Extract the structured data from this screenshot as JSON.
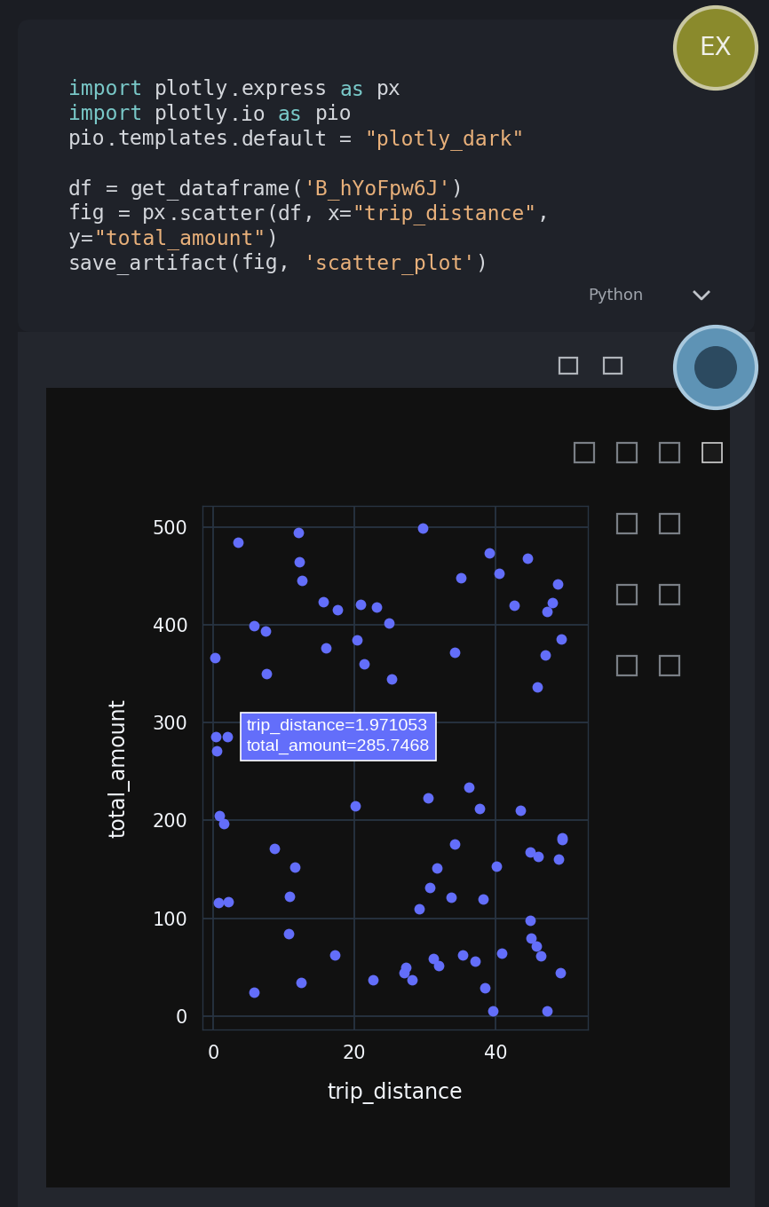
{
  "header": {
    "avatar": "EX"
  },
  "code": {
    "language": "Python",
    "blocks": [
      [
        "import plotly.express as px",
        "import plotly.io as pio",
        "pio.templates.default = \"plotly_dark\""
      ],
      [
        "df = get_dataframe('B_hYoFpw6J')",
        "fig = px.scatter(df, x=\"trip_distance\",",
        "y=\"total_amount\")",
        "save_artifact(fig, 'scatter_plot')"
      ]
    ]
  },
  "chart_data": {
    "type": "scatter",
    "xlabel": "trip_distance",
    "ylabel": "total_amount",
    "color": "#636efa",
    "grid": true,
    "xlim": [
      -1.5,
      53
    ],
    "ylim": [
      -14,
      522
    ],
    "xticks": [
      0,
      20,
      40
    ],
    "yticks": [
      0,
      100,
      200,
      300,
      400,
      500
    ],
    "x": [
      3.5,
      12.1,
      12.2,
      12.6,
      29.6,
      0.25,
      5.8,
      7.4,
      7.5,
      15.6,
      17.6,
      16,
      20.9,
      23.1,
      24.9,
      20.3,
      21.4,
      25.2,
      35,
      34.2,
      39.1,
      40.5,
      42.6,
      44.5,
      48.7,
      48,
      47.2,
      49.2,
      47,
      45.9,
      0.4,
      1.971053,
      0.5,
      0.9,
      1.5,
      0.75,
      2.1,
      36.2,
      30.4,
      20.1,
      37.7,
      43.4,
      34.2,
      8.7,
      11.6,
      31.6,
      40.1,
      44.9,
      46,
      49.3,
      49.3,
      48.9,
      30.6,
      33.6,
      38.2,
      29.1,
      10.8,
      10.7,
      44.9,
      45,
      45.7,
      46.4,
      40.8,
      35.3,
      37.1,
      31.1,
      31.9,
      17.2,
      27.2,
      27,
      28.1,
      22.6,
      12.5,
      5.8,
      38.4,
      49.1,
      39.6,
      47.2
    ],
    "values": [
      484.5,
      494.5,
      464.5,
      446,
      499,
      367,
      399,
      393.6,
      350,
      423.6,
      416,
      377,
      421,
      418,
      402,
      385,
      360,
      345,
      448,
      372,
      473.6,
      452.7,
      420,
      468,
      442,
      422.7,
      413.6,
      385.5,
      369,
      337,
      285.5,
      285.7468,
      271,
      204.5,
      197,
      116,
      117,
      233.6,
      222.7,
      214.5,
      212,
      210,
      176,
      171,
      152.7,
      151,
      153.6,
      168,
      163.6,
      181.8,
      180,
      160,
      131,
      121,
      120,
      110,
      122.7,
      84.5,
      98,
      80,
      71.8,
      61.8,
      64.5,
      62.7,
      55.5,
      59,
      51.8,
      62.7,
      50,
      44.5,
      37.3,
      37.3,
      34.5,
      24.5,
      29,
      44.5,
      5.5,
      5.5
    ],
    "annotations": [
      {
        "text": "trip_distance=1.971053\ntotal_amount=285.7468",
        "x": 1.971053,
        "y": 285.7468
      }
    ]
  }
}
